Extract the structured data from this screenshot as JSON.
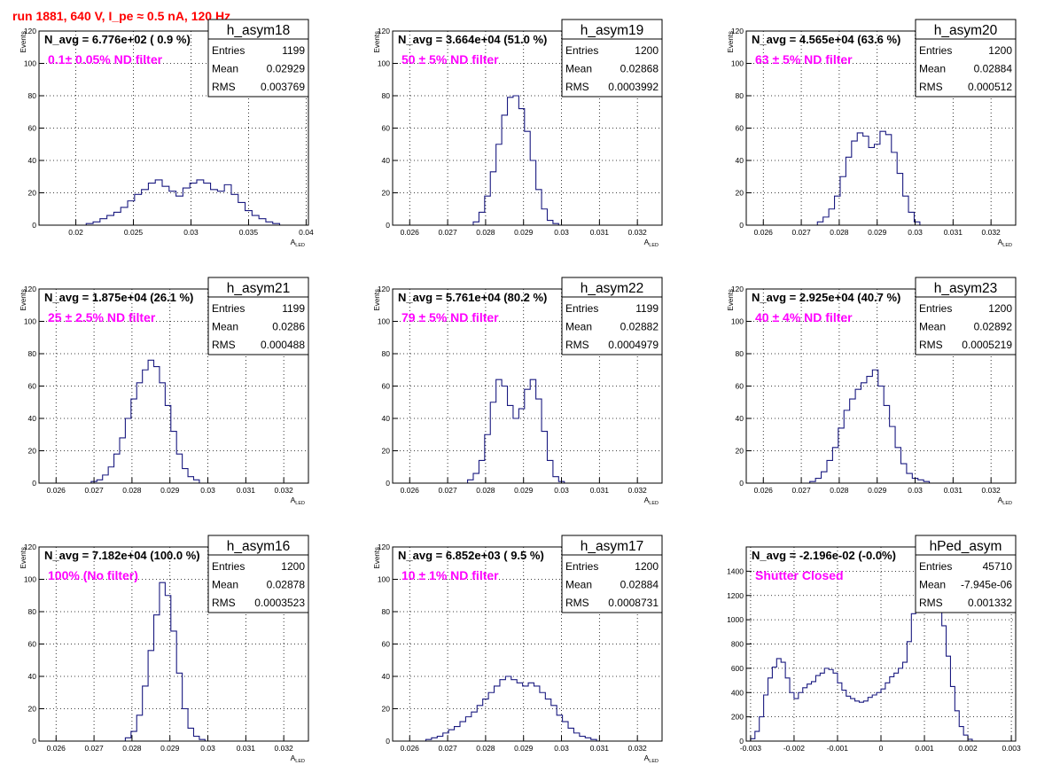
{
  "page": {
    "title": "run 1881,   640 V, I_pe ≈ 0.5 nA, 120 Hz"
  },
  "colors": {
    "histogram": "#1a1a80",
    "annotation": "#ff00ff",
    "title": "#ff0000",
    "frame": "#000000",
    "grid": "#000000"
  },
  "chart_data": [
    {
      "type": "histogram",
      "name": "h_asym18",
      "stats": {
        "Entries": "1199",
        "Mean": "0.02929",
        "RMS": "0.003769"
      },
      "navg_text": "N_avg = 6.776e+02 ( 0.9 %)",
      "annotation": "0.1± 0.05% ND filter",
      "xlabel": "A_LED",
      "ylabel": "Events",
      "xlim": [
        0.0168,
        0.0402
      ],
      "ylim": [
        0,
        120
      ],
      "xticks": [
        0.02,
        0.025,
        0.03,
        0.035,
        0.04
      ],
      "yticks": [
        0,
        20,
        40,
        60,
        80,
        100,
        120
      ],
      "grid": true,
      "bins": [
        [
          0.0212,
          1
        ],
        [
          0.0218,
          2
        ],
        [
          0.0224,
          4
        ],
        [
          0.023,
          6
        ],
        [
          0.0236,
          8
        ],
        [
          0.0242,
          11
        ],
        [
          0.0248,
          15
        ],
        [
          0.0254,
          19
        ],
        [
          0.026,
          22
        ],
        [
          0.0266,
          26
        ],
        [
          0.0272,
          28
        ],
        [
          0.0278,
          24
        ],
        [
          0.0284,
          21
        ],
        [
          0.029,
          18
        ],
        [
          0.0296,
          23
        ],
        [
          0.0302,
          26
        ],
        [
          0.0308,
          28
        ],
        [
          0.0314,
          26
        ],
        [
          0.032,
          22
        ],
        [
          0.0326,
          21
        ],
        [
          0.0332,
          25
        ],
        [
          0.0338,
          19
        ],
        [
          0.0344,
          14
        ],
        [
          0.035,
          9
        ],
        [
          0.0356,
          6
        ],
        [
          0.0362,
          4
        ],
        [
          0.0368,
          2
        ],
        [
          0.0374,
          1
        ]
      ]
    },
    {
      "type": "histogram",
      "name": "h_asym19",
      "stats": {
        "Entries": "1200",
        "Mean": "0.02868",
        "RMS": "0.0003992"
      },
      "navg_text": "N_avg = 3.664e+04 (51.0 %)",
      "annotation": "50 ± 5% ND filter",
      "xlabel": "A_LED",
      "ylabel": "Events",
      "xlim": [
        0.02555,
        0.03265
      ],
      "ylim": [
        0,
        120
      ],
      "xticks": [
        0.026,
        0.027,
        0.028,
        0.029,
        0.03,
        0.031,
        0.032
      ],
      "yticks": [
        0,
        20,
        40,
        60,
        80,
        100,
        120
      ],
      "grid": true,
      "bins": [
        [
          0.02775,
          2
        ],
        [
          0.0279,
          8
        ],
        [
          0.02805,
          18
        ],
        [
          0.0282,
          33
        ],
        [
          0.02835,
          50
        ],
        [
          0.0285,
          68
        ],
        [
          0.02865,
          79
        ],
        [
          0.0288,
          80
        ],
        [
          0.02895,
          72
        ],
        [
          0.0291,
          58
        ],
        [
          0.02925,
          40
        ],
        [
          0.0294,
          22
        ],
        [
          0.02955,
          10
        ],
        [
          0.0297,
          3
        ],
        [
          0.02985,
          1
        ]
      ]
    },
    {
      "type": "histogram",
      "name": "h_asym20",
      "stats": {
        "Entries": "1200",
        "Mean": "0.02884",
        "RMS": "0.000512"
      },
      "navg_text": "N_avg = 4.565e+04 (63.6 %)",
      "annotation": "63 ± 5% ND filter",
      "xlabel": "A_LED",
      "ylabel": "Events",
      "xlim": [
        0.02555,
        0.03265
      ],
      "ylim": [
        0,
        120
      ],
      "xticks": [
        0.026,
        0.027,
        0.028,
        0.029,
        0.03,
        0.031,
        0.032
      ],
      "yticks": [
        0,
        20,
        40,
        60,
        80,
        100,
        120
      ],
      "grid": true,
      "bins": [
        [
          0.0275,
          2
        ],
        [
          0.02765,
          5
        ],
        [
          0.0278,
          10
        ],
        [
          0.02795,
          18
        ],
        [
          0.0281,
          30
        ],
        [
          0.02825,
          42
        ],
        [
          0.0284,
          52
        ],
        [
          0.02855,
          57
        ],
        [
          0.0287,
          55
        ],
        [
          0.02885,
          48
        ],
        [
          0.029,
          50
        ],
        [
          0.02915,
          58
        ],
        [
          0.0293,
          56
        ],
        [
          0.02945,
          45
        ],
        [
          0.0296,
          32
        ],
        [
          0.02975,
          18
        ],
        [
          0.0299,
          8
        ],
        [
          0.03005,
          2
        ]
      ]
    },
    {
      "type": "histogram",
      "name": "h_asym21",
      "stats": {
        "Entries": "1199",
        "Mean": "0.0286",
        "RMS": "0.000488"
      },
      "navg_text": "N_avg = 1.875e+04 (26.1 %)",
      "annotation": "25 ± 2.5% ND filter",
      "xlabel": "A_LED",
      "ylabel": "Events",
      "xlim": [
        0.02555,
        0.03265
      ],
      "ylim": [
        0,
        120
      ],
      "xticks": [
        0.026,
        0.027,
        0.028,
        0.029,
        0.03,
        0.031,
        0.032
      ],
      "yticks": [
        0,
        20,
        40,
        60,
        80,
        100,
        120
      ],
      "grid": true,
      "bins": [
        [
          0.027,
          1
        ],
        [
          0.02715,
          2
        ],
        [
          0.0273,
          5
        ],
        [
          0.02745,
          10
        ],
        [
          0.0276,
          18
        ],
        [
          0.02775,
          28
        ],
        [
          0.0279,
          40
        ],
        [
          0.02805,
          52
        ],
        [
          0.0282,
          62
        ],
        [
          0.02835,
          70
        ],
        [
          0.0285,
          76
        ],
        [
          0.02865,
          72
        ],
        [
          0.0288,
          62
        ],
        [
          0.02895,
          48
        ],
        [
          0.0291,
          32
        ],
        [
          0.02925,
          18
        ],
        [
          0.0294,
          9
        ],
        [
          0.02955,
          4
        ],
        [
          0.0297,
          2
        ]
      ]
    },
    {
      "type": "histogram",
      "name": "h_asym22",
      "stats": {
        "Entries": "1199",
        "Mean": "0.02882",
        "RMS": "0.0004979"
      },
      "navg_text": "N_avg = 5.761e+04 (80.2 %)",
      "annotation": "79 ± 5% ND filter",
      "xlabel": "A_LED",
      "ylabel": "Events",
      "xlim": [
        0.02555,
        0.03265
      ],
      "ylim": [
        0,
        120
      ],
      "xticks": [
        0.026,
        0.027,
        0.028,
        0.029,
        0.03,
        0.031,
        0.032
      ],
      "yticks": [
        0,
        20,
        40,
        60,
        80,
        100,
        120
      ],
      "grid": true,
      "bins": [
        [
          0.0276,
          2
        ],
        [
          0.02775,
          6
        ],
        [
          0.0279,
          14
        ],
        [
          0.02805,
          30
        ],
        [
          0.0282,
          50
        ],
        [
          0.02835,
          64
        ],
        [
          0.0285,
          60
        ],
        [
          0.02865,
          48
        ],
        [
          0.0288,
          40
        ],
        [
          0.02895,
          46
        ],
        [
          0.0291,
          58
        ],
        [
          0.02925,
          64
        ],
        [
          0.0294,
          52
        ],
        [
          0.02955,
          32
        ],
        [
          0.0297,
          14
        ],
        [
          0.02985,
          4
        ],
        [
          0.03,
          1
        ]
      ]
    },
    {
      "type": "histogram",
      "name": "h_asym23",
      "stats": {
        "Entries": "1200",
        "Mean": "0.02892",
        "RMS": "0.0005219"
      },
      "navg_text": "N_avg = 2.925e+04 (40.7 %)",
      "annotation": "40 ± 4% ND filter",
      "xlabel": "A_LED",
      "ylabel": "Events",
      "xlim": [
        0.02555,
        0.03265
      ],
      "ylim": [
        0,
        120
      ],
      "xticks": [
        0.026,
        0.027,
        0.028,
        0.029,
        0.03,
        0.031,
        0.032
      ],
      "yticks": [
        0,
        20,
        40,
        60,
        80,
        100,
        120
      ],
      "grid": true,
      "bins": [
        [
          0.0273,
          1
        ],
        [
          0.02745,
          3
        ],
        [
          0.0276,
          7
        ],
        [
          0.02775,
          14
        ],
        [
          0.0279,
          22
        ],
        [
          0.02805,
          34
        ],
        [
          0.0282,
          45
        ],
        [
          0.02835,
          52
        ],
        [
          0.0285,
          58
        ],
        [
          0.02865,
          62
        ],
        [
          0.0288,
          66
        ],
        [
          0.02895,
          70
        ],
        [
          0.0291,
          60
        ],
        [
          0.02925,
          48
        ],
        [
          0.0294,
          35
        ],
        [
          0.02955,
          22
        ],
        [
          0.0297,
          12
        ],
        [
          0.02985,
          6
        ],
        [
          0.03,
          3
        ],
        [
          0.03015,
          2
        ],
        [
          0.0303,
          1
        ]
      ]
    },
    {
      "type": "histogram",
      "name": "h_asym16",
      "stats": {
        "Entries": "1200",
        "Mean": "0.02878",
        "RMS": "0.0003523"
      },
      "navg_text": "N_avg = 7.182e+04 (100.0 %)",
      "annotation": "100% (No filter)",
      "xlabel": "A_LED",
      "ylabel": "Events",
      "xlim": [
        0.02555,
        0.03265
      ],
      "ylim": [
        0,
        120
      ],
      "xticks": [
        0.026,
        0.027,
        0.028,
        0.029,
        0.03,
        0.031,
        0.032
      ],
      "yticks": [
        0,
        20,
        40,
        60,
        80,
        100,
        120
      ],
      "grid": true,
      "bins": [
        [
          0.0279,
          2
        ],
        [
          0.02805,
          6
        ],
        [
          0.0282,
          16
        ],
        [
          0.02835,
          34
        ],
        [
          0.0285,
          56
        ],
        [
          0.02865,
          78
        ],
        [
          0.0288,
          98
        ],
        [
          0.02895,
          90
        ],
        [
          0.0291,
          68
        ],
        [
          0.02925,
          42
        ],
        [
          0.0294,
          20
        ],
        [
          0.02955,
          8
        ],
        [
          0.0297,
          3
        ],
        [
          0.02985,
          1
        ]
      ]
    },
    {
      "type": "histogram",
      "name": "h_asym17",
      "stats": {
        "Entries": "1200",
        "Mean": "0.02884",
        "RMS": "0.0008731"
      },
      "navg_text": "N_avg = 6.852e+03 ( 9.5 %)",
      "annotation": "10 ± 1% ND filter",
      "xlabel": "A_LED",
      "ylabel": "Events",
      "xlim": [
        0.02555,
        0.03265
      ],
      "ylim": [
        0,
        120
      ],
      "xticks": [
        0.026,
        0.027,
        0.028,
        0.029,
        0.03,
        0.031,
        0.032
      ],
      "yticks": [
        0,
        20,
        40,
        60,
        80,
        100,
        120
      ],
      "grid": true,
      "bins": [
        [
          0.0265,
          1
        ],
        [
          0.02665,
          2
        ],
        [
          0.0268,
          3
        ],
        [
          0.02695,
          5
        ],
        [
          0.0271,
          7
        ],
        [
          0.02725,
          9
        ],
        [
          0.0274,
          12
        ],
        [
          0.02755,
          15
        ],
        [
          0.0277,
          18
        ],
        [
          0.02785,
          22
        ],
        [
          0.028,
          26
        ],
        [
          0.02815,
          30
        ],
        [
          0.0283,
          34
        ],
        [
          0.02845,
          38
        ],
        [
          0.0286,
          40
        ],
        [
          0.02875,
          38
        ],
        [
          0.0289,
          36
        ],
        [
          0.02905,
          34
        ],
        [
          0.0292,
          36
        ],
        [
          0.02935,
          34
        ],
        [
          0.0295,
          30
        ],
        [
          0.02965,
          26
        ],
        [
          0.0298,
          22
        ],
        [
          0.02995,
          16
        ],
        [
          0.0301,
          12
        ],
        [
          0.03025,
          8
        ],
        [
          0.0304,
          5
        ],
        [
          0.03055,
          3
        ],
        [
          0.0307,
          2
        ],
        [
          0.03085,
          1
        ]
      ]
    },
    {
      "type": "histogram",
      "name": "hPed_asym",
      "stats": {
        "Entries": "45710",
        "Mean": "-7.945e-06",
        "RMS": "0.001332"
      },
      "navg_text": "N_avg = -2.196e-02 (-0.0%)",
      "annotation": "Shutter Closed",
      "xlabel": "",
      "ylabel": "",
      "xlim": [
        -0.0031,
        0.0031
      ],
      "ylim": [
        0,
        1600
      ],
      "xticks": [
        -0.003,
        -0.002,
        -0.001,
        0,
        0.001,
        0.002,
        0.003
      ],
      "yticks": [
        0,
        200,
        400,
        600,
        800,
        1000,
        1200,
        1400
      ],
      "grid": true,
      "bins": [
        [
          -0.00295,
          20
        ],
        [
          -0.00285,
          80
        ],
        [
          -0.00275,
          200
        ],
        [
          -0.00265,
          380
        ],
        [
          -0.00255,
          520
        ],
        [
          -0.00245,
          610
        ],
        [
          -0.00235,
          680
        ],
        [
          -0.00225,
          650
        ],
        [
          -0.00215,
          520
        ],
        [
          -0.00205,
          400
        ],
        [
          -0.00195,
          350
        ],
        [
          -0.00185,
          400
        ],
        [
          -0.00175,
          440
        ],
        [
          -0.00165,
          470
        ],
        [
          -0.00155,
          490
        ],
        [
          -0.00145,
          540
        ],
        [
          -0.00135,
          560
        ],
        [
          -0.00125,
          600
        ],
        [
          -0.00115,
          590
        ],
        [
          -0.00105,
          560
        ],
        [
          -0.00095,
          480
        ],
        [
          -0.00085,
          420
        ],
        [
          -0.00075,
          370
        ],
        [
          -0.00065,
          350
        ],
        [
          -0.00055,
          330
        ],
        [
          -0.00045,
          320
        ],
        [
          -0.00035,
          330
        ],
        [
          -0.00025,
          360
        ],
        [
          -0.00015,
          380
        ],
        [
          -5e-05,
          400
        ],
        [
          5e-05,
          430
        ],
        [
          0.00015,
          480
        ],
        [
          0.00025,
          530
        ],
        [
          0.00035,
          560
        ],
        [
          0.00045,
          600
        ],
        [
          0.00055,
          650
        ],
        [
          0.00065,
          820
        ],
        [
          0.00075,
          1050
        ],
        [
          0.00085,
          1380
        ],
        [
          0.00095,
          1530
        ],
        [
          0.00105,
          1300
        ],
        [
          0.00115,
          1200
        ],
        [
          0.00125,
          1150
        ],
        [
          0.00135,
          1080
        ],
        [
          0.00145,
          950
        ],
        [
          0.00155,
          700
        ],
        [
          0.00165,
          450
        ],
        [
          0.00175,
          250
        ],
        [
          0.00185,
          120
        ],
        [
          0.00195,
          50
        ],
        [
          0.00205,
          15
        ]
      ]
    }
  ]
}
